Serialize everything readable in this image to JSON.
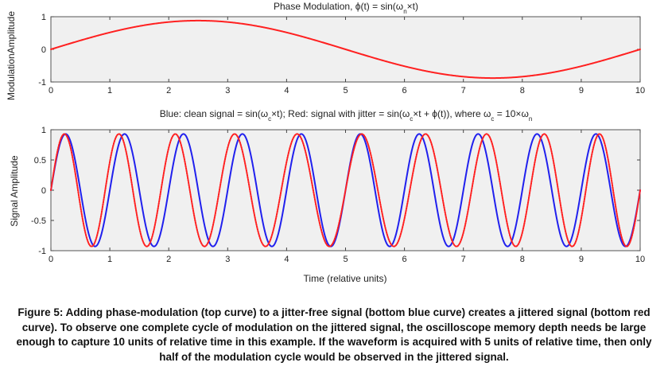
{
  "chart_data": [
    {
      "type": "line",
      "title": "Phase Modulation, ϕ(t) = sin(ωn×t)",
      "title_parts": {
        "pre": "Phase Modulation, ",
        "phi": "ϕ",
        "mid": "(t) = sin(ω",
        "sub": "n",
        "post": "×t)"
      },
      "xlabel": "",
      "ylabel": "ModulationAmplitude",
      "xlim": [
        0,
        10
      ],
      "ylim": [
        -1,
        1
      ],
      "xticks": [
        "0",
        "1",
        "2",
        "3",
        "4",
        "5",
        "6",
        "7",
        "8",
        "9",
        "10"
      ],
      "yticks": [
        "-1",
        "0",
        "1"
      ],
      "grid": false,
      "background": "#f0f0f0",
      "series": [
        {
          "color": "#ff2020",
          "frequency": 0.1,
          "amplitude": 0.88,
          "description": "modulation = sin(2π·0.1·t), peaks near t=2.5, trough near t=7.5"
        }
      ]
    },
    {
      "type": "line",
      "title": "Blue: clean signal = sin(ωc×t); Red: signal with jitter = sin(ωc×t + ϕ(t)), where ωc = 10×ωn",
      "title_parts": {
        "a": "Blue: clean signal = sin(ω",
        "sub1": "c",
        "b": "×t); Red: signal with jitter = sin(ω",
        "sub2": "c",
        "c": "×t + ϕ(t)), where ω",
        "sub3": "c",
        "d": " = 10×ω",
        "sub4": "n"
      },
      "xlabel": "Time (relative units)",
      "ylabel": "Signal Amplitude",
      "xlim": [
        0,
        10
      ],
      "ylim": [
        -1,
        1
      ],
      "xticks": [
        "0",
        "1",
        "2",
        "3",
        "4",
        "5",
        "6",
        "7",
        "8",
        "9",
        "10"
      ],
      "yticks": [
        "-1",
        "-0.5",
        "0",
        "0.5",
        "1"
      ],
      "grid": false,
      "background": "#f0f0f0",
      "series": [
        {
          "color": "#2020ee",
          "frequency": 1.0,
          "amplitude": 0.93,
          "phase_jitter": 0
        },
        {
          "color": "#ff2020",
          "frequency": 1.0,
          "amplitude": 0.93,
          "phase_jitter": 0.9
        }
      ]
    }
  ],
  "caption": "Figure 5: Adding phase-modulation (top curve) to a jitter-free signal (bottom blue curve) creates a jittered signal (bottom red curve). To observe one complete cycle of modulation on the jittered signal, the oscilloscope memory depth needs be large enough to capture 10 units of relative time in this example. If the waveform is acquired with 5 units of relative time, then only half of the modulation cycle would be observed in the jittered signal."
}
